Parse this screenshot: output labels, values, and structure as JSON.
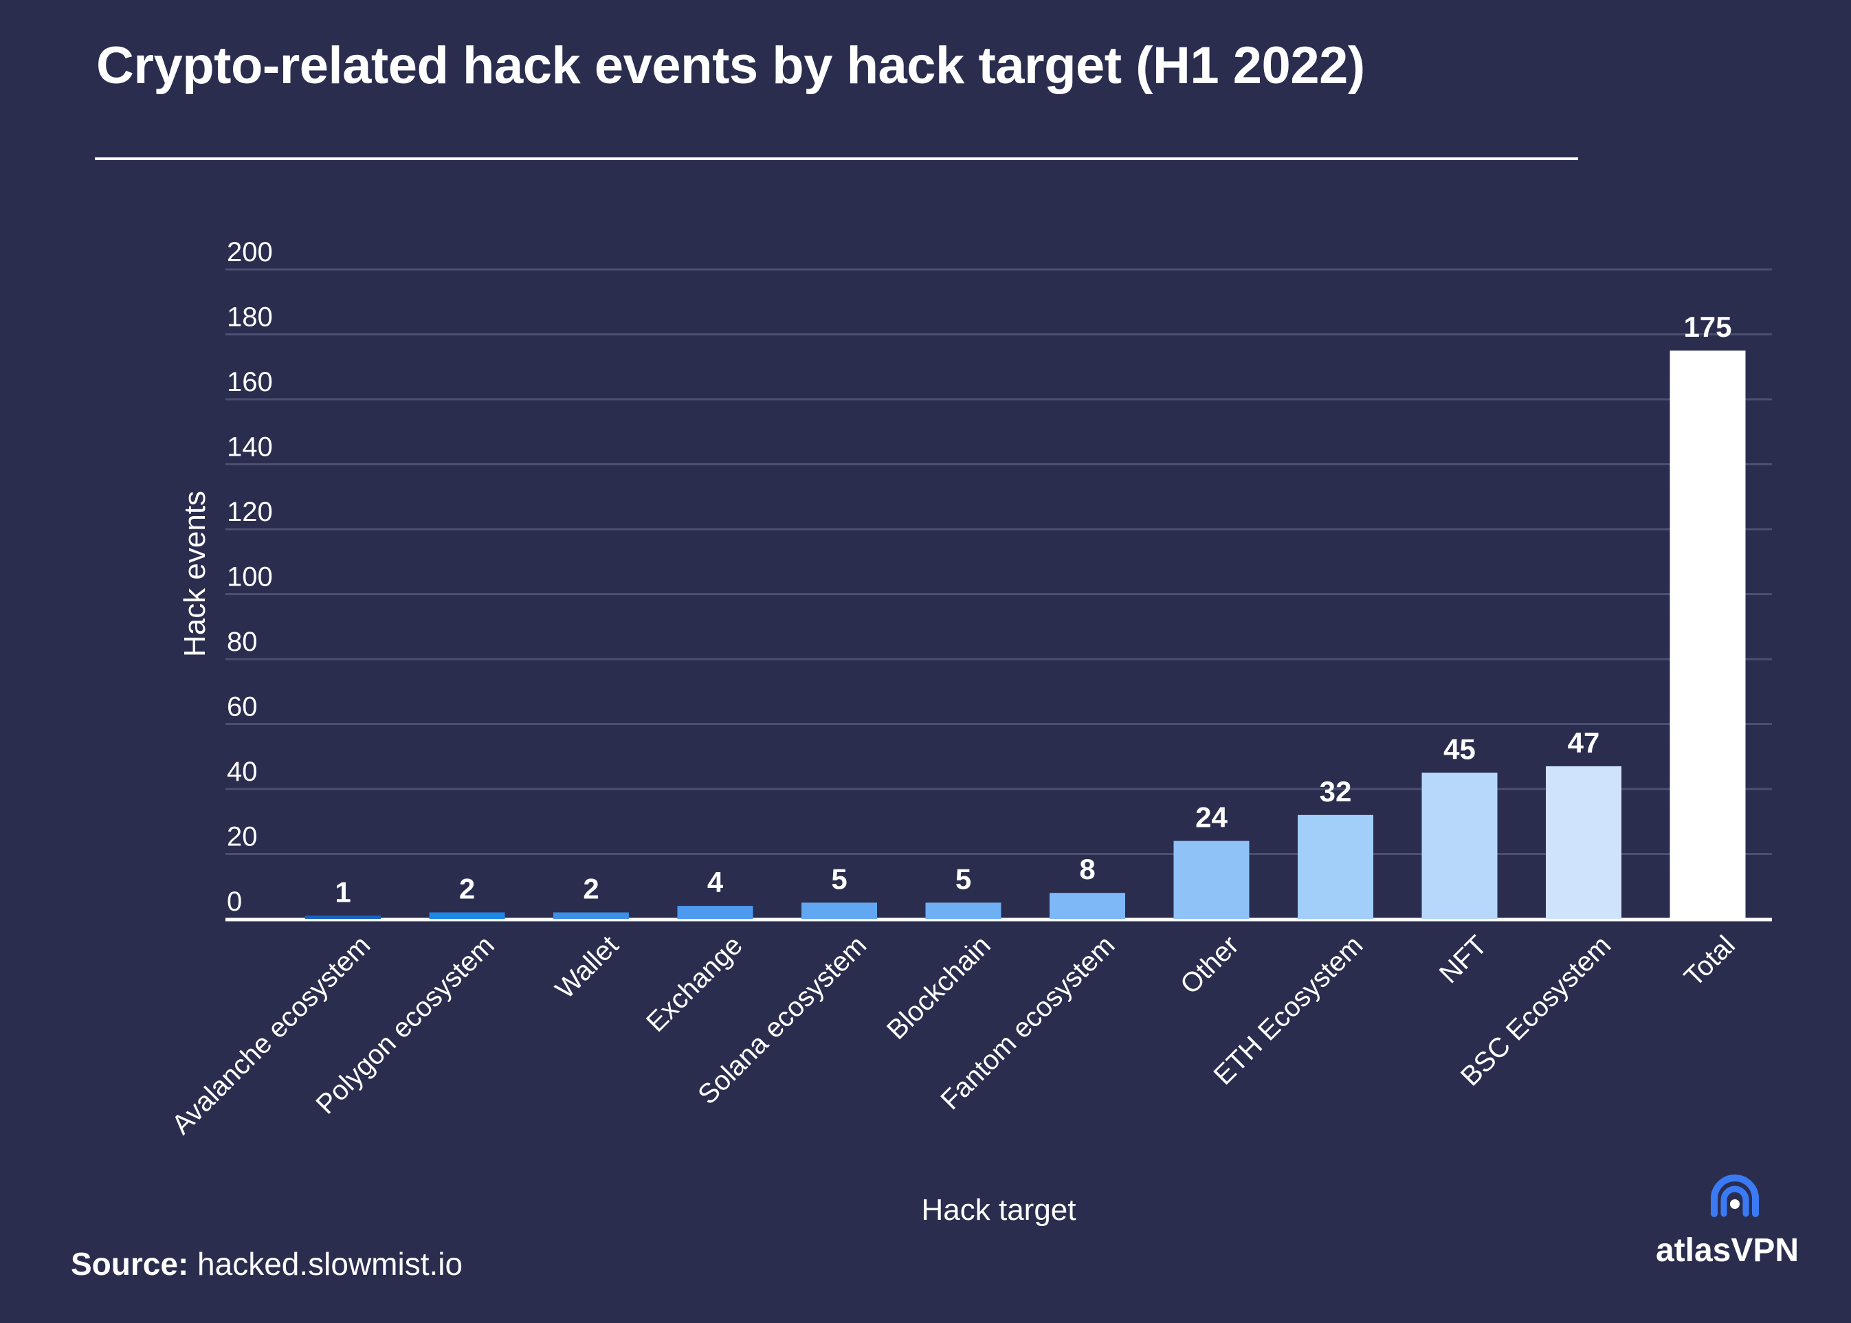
{
  "page": {
    "title": "Crypto-related hack events by hack target (H1 2022)",
    "source_label": "Source:",
    "source_value": "hacked.slowmist.io",
    "brand_name": "atlasVPN",
    "brand_icon": "atlas-signal-icon"
  },
  "colors": {
    "background": "#2a2d4e",
    "gridline": "#4b4f72",
    "text": "#ffffff"
  },
  "chart_data": {
    "type": "bar",
    "title": "Crypto-related hack events by hack target (H1 2022)",
    "xlabel": "Hack target",
    "ylabel": "Hack events",
    "ylim": [
      0,
      200
    ],
    "yticks": [
      0,
      20,
      40,
      60,
      80,
      100,
      120,
      140,
      160,
      180,
      200
    ],
    "grid": true,
    "legend": "none",
    "categories": [
      "Avalanche ecosystem",
      "Polygon ecosystem",
      "Wallet",
      "Exchange",
      "Solana ecosystem",
      "Blockchain",
      "Fantom ecosystem",
      "Other",
      "ETH Ecosystem",
      "NFT",
      "BSC Ecosystem",
      "Total"
    ],
    "values": [
      1,
      2,
      2,
      4,
      5,
      5,
      8,
      24,
      32,
      45,
      47,
      175
    ],
    "bar_colors": [
      "#1565c0",
      "#1e88e5",
      "#3d8fe6",
      "#4d9af0",
      "#62a7f2",
      "#6faff3",
      "#7fb8f6",
      "#8fc3f8",
      "#a2cefa",
      "#b7d8fb",
      "#cfe3fc",
      "#ffffff"
    ]
  }
}
